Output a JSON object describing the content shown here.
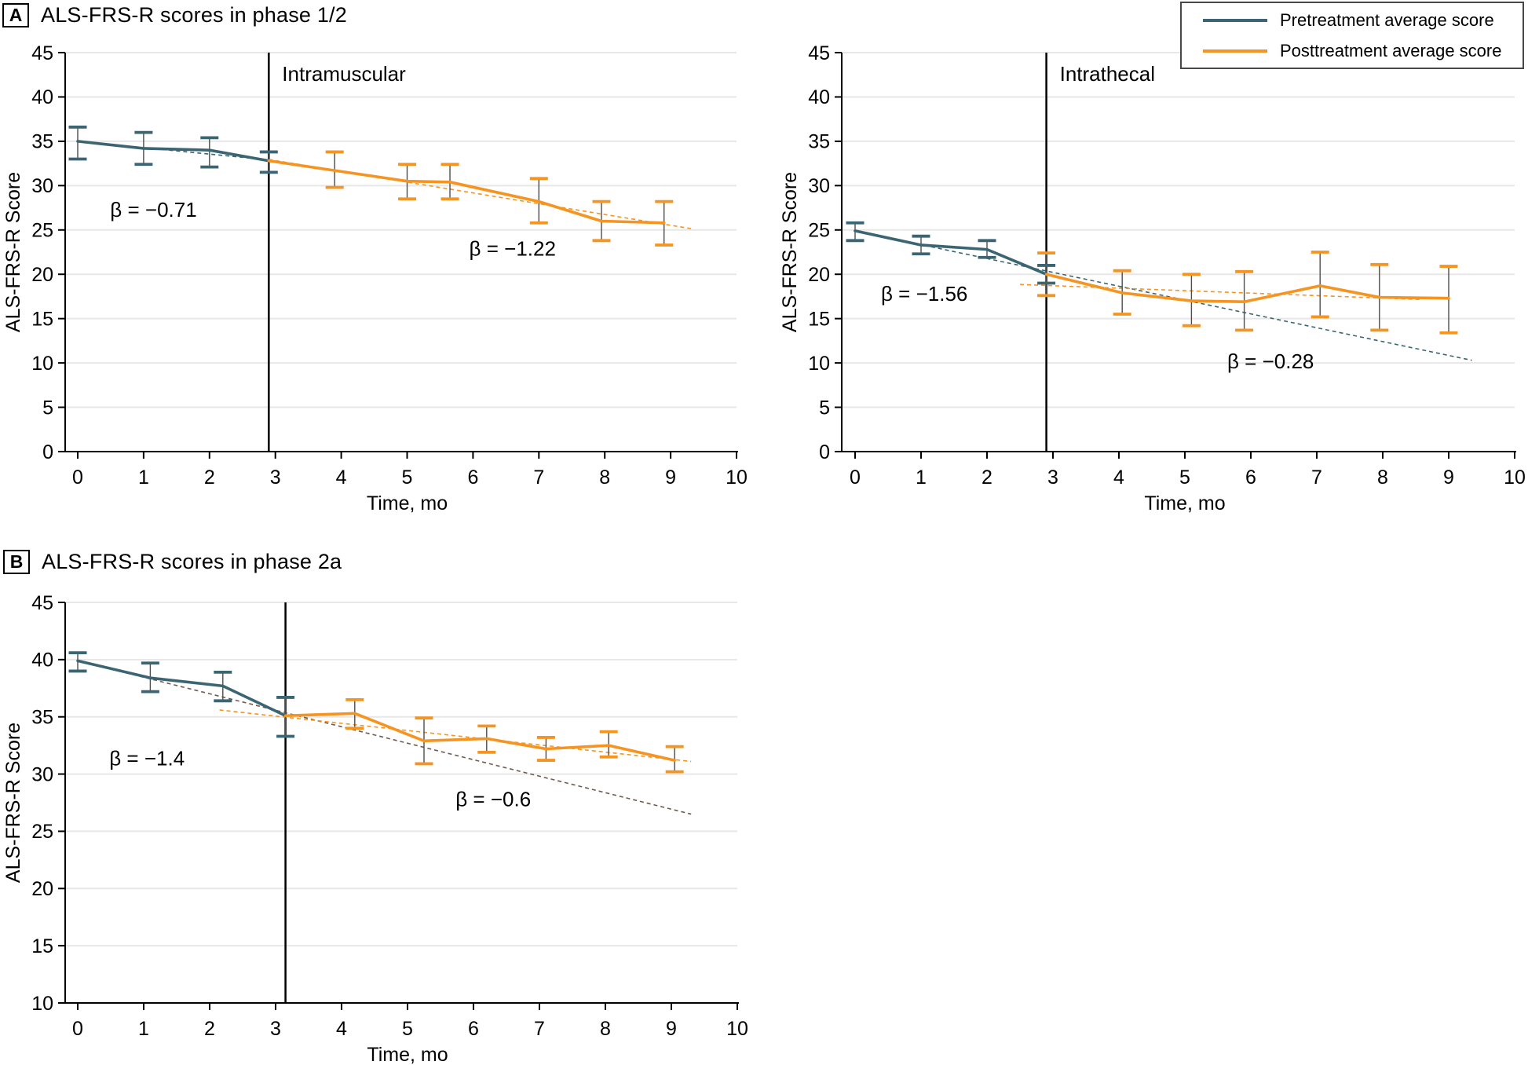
{
  "legend": {
    "items": [
      {
        "label": "Pretreatment average score",
        "color": "#3B6573"
      },
      {
        "label": "Posttreatment average score",
        "color": "#F59420"
      }
    ]
  },
  "panels": [
    {
      "badge": "A",
      "title": "ALS-FRS-R scores in phase 1/2"
    },
    {
      "badge": "B",
      "title": "ALS-FRS-R scores in phase 2a"
    }
  ],
  "chart_data": [
    {
      "id": "phase12-intramuscular",
      "type": "line",
      "panel": "A",
      "group_label": "Intramuscular",
      "xlabel": "Time, mo",
      "ylabel": "ALS-FRS-R Score",
      "xlim": [
        0,
        10
      ],
      "ylim": [
        0,
        45
      ],
      "x_ticks": [
        0,
        1,
        2,
        3,
        4,
        5,
        6,
        7,
        8,
        9,
        10
      ],
      "y_ticks": [
        0,
        5,
        10,
        15,
        20,
        25,
        30,
        35,
        40,
        45
      ],
      "grid": true,
      "treatment_start_month": 2.9,
      "series": [
        {
          "name": "Pretreatment average score",
          "color": "#3B6573",
          "x": [
            0,
            1,
            2,
            2.9
          ],
          "y": [
            35.0,
            34.2,
            34.0,
            32.8
          ],
          "err_lo": [
            33.0,
            32.4,
            32.1,
            31.5
          ],
          "err_hi": [
            36.6,
            36.0,
            35.4,
            33.8
          ],
          "beta": "β = −0.71"
        },
        {
          "name": "Posttreatment average score",
          "color": "#F59420",
          "x": [
            2.9,
            3.9,
            5.0,
            5.65,
            7.0,
            7.95,
            8.9
          ],
          "y": [
            32.8,
            31.7,
            30.5,
            30.4,
            28.2,
            26.0,
            25.8
          ],
          "err_lo": [
            null,
            29.8,
            28.5,
            28.5,
            25.8,
            23.8,
            23.3
          ],
          "err_hi": [
            null,
            33.8,
            32.4,
            32.4,
            30.8,
            28.2,
            28.2
          ],
          "beta": "β = −1.22"
        }
      ],
      "trend_lines": [
        {
          "series": "pretreatment",
          "color": "#3B6573",
          "x": [
            0,
            2.9
          ],
          "y": [
            35.0,
            32.9
          ]
        },
        {
          "series": "posttreatment",
          "color": "#F59420",
          "x": [
            2.9,
            9.35
          ],
          "y": [
            32.95,
            25.1
          ]
        }
      ],
      "annotations": [
        {
          "text": "β = −0.71",
          "x": 1.15,
          "y": 27.3
        },
        {
          "text": "β = −1.22",
          "x": 6.6,
          "y": 22.9
        }
      ]
    },
    {
      "id": "phase12-intrathecal",
      "type": "line",
      "panel": "A",
      "group_label": "Intrathecal",
      "xlabel": "Time, mo",
      "ylabel": "ALS-FRS-R Score",
      "xlim": [
        0,
        10
      ],
      "ylim": [
        0,
        45
      ],
      "x_ticks": [
        0,
        1,
        2,
        3,
        4,
        5,
        6,
        7,
        8,
        9,
        10
      ],
      "y_ticks": [
        0,
        5,
        10,
        15,
        20,
        25,
        30,
        35,
        40,
        45
      ],
      "grid": true,
      "treatment_start_month": 2.9,
      "series": [
        {
          "name": "Pretreatment average score",
          "color": "#3B6573",
          "x": [
            0,
            1,
            2,
            2.9
          ],
          "y": [
            24.9,
            23.3,
            22.8,
            20.0
          ],
          "err_lo": [
            23.8,
            22.3,
            21.9,
            19.0
          ],
          "err_hi": [
            25.8,
            24.3,
            23.8,
            21.0
          ],
          "beta": "β = −1.56"
        },
        {
          "name": "Posttreatment average score",
          "color": "#F59420",
          "x": [
            2.9,
            4.05,
            5.1,
            5.9,
            7.05,
            7.95,
            9.0
          ],
          "y": [
            20.0,
            17.9,
            17.0,
            16.9,
            18.7,
            17.4,
            17.3
          ],
          "err_lo": [
            17.6,
            15.5,
            14.2,
            13.7,
            15.2,
            13.7,
            13.4
          ],
          "err_hi": [
            22.4,
            20.4,
            20.0,
            20.3,
            22.5,
            21.1,
            20.9
          ],
          "beta": "β = −0.28"
        }
      ],
      "trend_lines": [
        {
          "series": "pretreatment",
          "color": "#3B6573",
          "x": [
            0,
            9.35
          ],
          "y": [
            24.9,
            10.3
          ]
        },
        {
          "series": "posttreatment",
          "color": "#F59420",
          "x": [
            2.5,
            8.6
          ],
          "y": [
            18.85,
            17.15
          ]
        }
      ],
      "annotations": [
        {
          "text": "β = −1.56",
          "x": 1.05,
          "y": 17.8
        },
        {
          "text": "β = −0.28",
          "x": 6.3,
          "y": 10.2
        }
      ]
    },
    {
      "id": "phase2a",
      "type": "line",
      "panel": "B",
      "group_label": "",
      "xlabel": "Time, mo",
      "ylabel": "ALS-FRS-R Score",
      "xlim": [
        0,
        10
      ],
      "ylim": [
        10,
        45
      ],
      "x_ticks": [
        0,
        1,
        2,
        3,
        4,
        5,
        6,
        7,
        8,
        9,
        10
      ],
      "y_ticks": [
        10,
        15,
        20,
        25,
        30,
        35,
        40,
        45
      ],
      "grid": true,
      "treatment_start_month": 3.15,
      "series": [
        {
          "name": "Pretreatment average score",
          "color": "#3B6573",
          "x": [
            0,
            1.1,
            2.2,
            3.15
          ],
          "y": [
            39.9,
            38.4,
            37.7,
            35.1
          ],
          "err_lo": [
            39.0,
            37.2,
            36.4,
            33.3
          ],
          "err_hi": [
            40.6,
            39.7,
            38.9,
            36.7
          ],
          "beta": "β = −1.4"
        },
        {
          "name": "Posttreatment average score",
          "color": "#F59420",
          "x": [
            3.15,
            4.2,
            5.25,
            6.2,
            7.1,
            8.05,
            9.05
          ],
          "y": [
            35.1,
            35.3,
            32.9,
            33.1,
            32.2,
            32.5,
            31.2
          ],
          "err_lo": [
            null,
            34.0,
            30.9,
            31.9,
            31.2,
            31.5,
            30.2
          ],
          "err_hi": [
            null,
            36.5,
            34.9,
            34.2,
            33.2,
            33.7,
            32.4
          ],
          "beta": "β = −0.6"
        }
      ],
      "trend_lines": [
        {
          "series": "pretreatment",
          "color": "#6F5B4F",
          "x": [
            0,
            9.3
          ],
          "y": [
            39.9,
            26.5
          ]
        },
        {
          "series": "posttreatment",
          "color": "#F59420",
          "x": [
            2.15,
            9.3
          ],
          "y": [
            35.6,
            31.1
          ]
        }
      ],
      "annotations": [
        {
          "text": "β = −1.4",
          "x": 1.05,
          "y": 31.4
        },
        {
          "text": "β = −0.6",
          "x": 6.3,
          "y": 27.8
        }
      ]
    }
  ]
}
